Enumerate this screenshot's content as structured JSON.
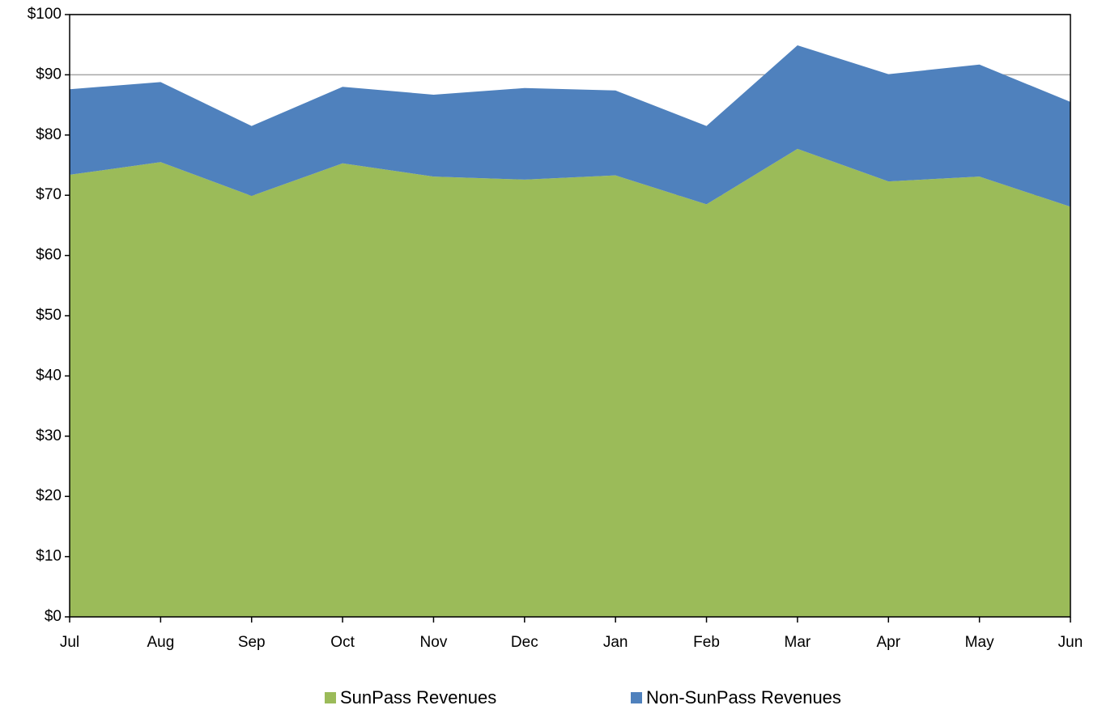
{
  "chart_data": {
    "type": "area",
    "stacked": true,
    "categories": [
      "Jul",
      "Aug",
      "Sep",
      "Oct",
      "Nov",
      "Dec",
      "Jan",
      "Feb",
      "Mar",
      "Apr",
      "May",
      "Jun"
    ],
    "series": [
      {
        "name": "SunPass Revenues",
        "color": "#9bbb59",
        "values": [
          73.4,
          75.5,
          69.9,
          75.3,
          73.1,
          72.6,
          73.3,
          68.5,
          77.7,
          72.3,
          73.1,
          68.1
        ]
      },
      {
        "name": "Non-SunPass Revenues",
        "color": "#4f81bd",
        "values": [
          14.2,
          13.3,
          11.6,
          12.7,
          13.6,
          15.2,
          14.1,
          13.0,
          17.2,
          17.8,
          18.6,
          17.4
        ]
      }
    ],
    "ylim": [
      0,
      100
    ],
    "yticks": [
      {
        "value": 0,
        "label": "$0"
      },
      {
        "value": 10,
        "label": "$10"
      },
      {
        "value": 20,
        "label": "$20"
      },
      {
        "value": 30,
        "label": "$30"
      },
      {
        "value": 40,
        "label": "$40"
      },
      {
        "value": 50,
        "label": "$50"
      },
      {
        "value": 60,
        "label": "$60"
      },
      {
        "value": 70,
        "label": "$70"
      },
      {
        "value": 80,
        "label": "$80"
      },
      {
        "value": 90,
        "label": "$90"
      },
      {
        "value": 100,
        "label": "$100"
      }
    ],
    "grid": true,
    "legend": "bottom"
  }
}
